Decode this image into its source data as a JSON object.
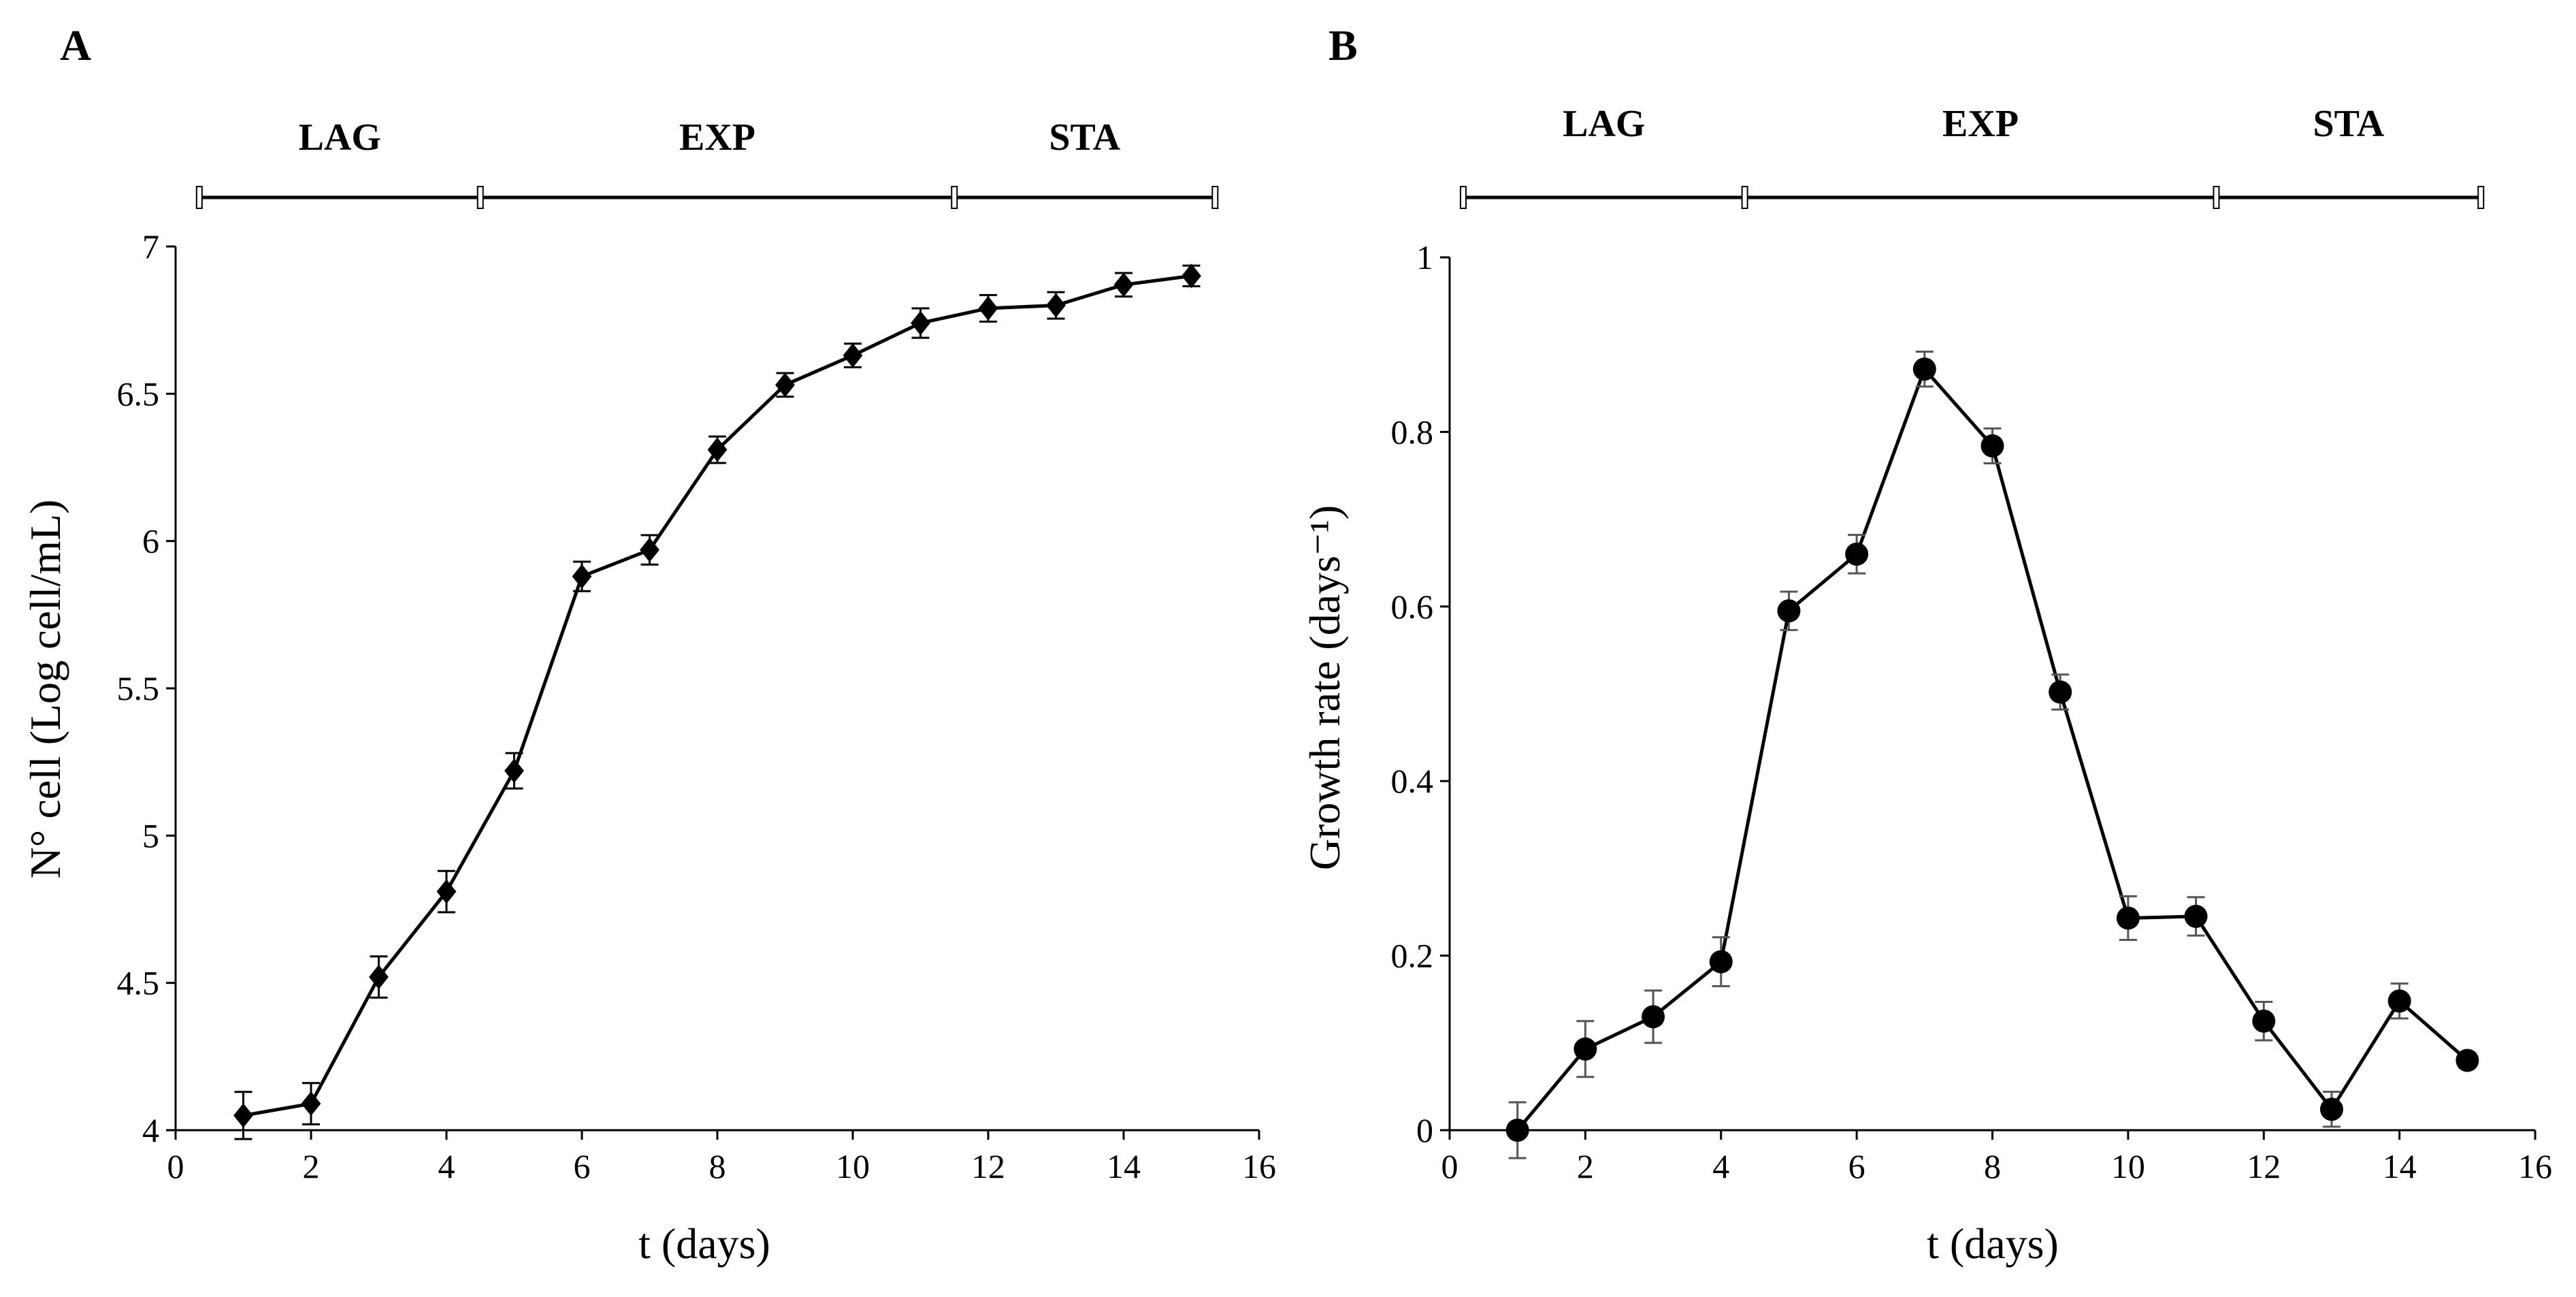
{
  "chart_data": [
    {
      "panel": "A",
      "type": "line",
      "marker": "diamond",
      "xlabel": "t (days)",
      "ylabel": "N° cell (Log cell/mL)",
      "xlim": [
        0,
        16
      ],
      "ylim": [
        4,
        7
      ],
      "xticks": [
        0,
        2,
        4,
        6,
        8,
        10,
        12,
        14,
        16
      ],
      "yticks": [
        4,
        4.5,
        5,
        5.5,
        6,
        6.5,
        7
      ],
      "grid": false,
      "phases": [
        {
          "label": "LAG",
          "start": 0.35,
          "end": 4.5
        },
        {
          "label": "EXP",
          "start": 4.5,
          "end": 11.5
        },
        {
          "label": "STA",
          "start": 11.5,
          "end": 15.35
        }
      ],
      "series": [
        {
          "x": [
            1,
            2,
            3,
            4,
            5,
            6,
            7,
            8,
            9,
            10,
            11,
            12,
            13,
            14,
            15
          ],
          "y": [
            4.05,
            4.09,
            4.52,
            4.81,
            5.22,
            5.88,
            5.97,
            6.31,
            6.53,
            6.63,
            6.74,
            6.79,
            6.8,
            6.87,
            6.9
          ],
          "err": [
            0.08,
            0.07,
            0.07,
            0.07,
            0.06,
            0.05,
            0.05,
            0.045,
            0.04,
            0.04,
            0.05,
            0.045,
            0.045,
            0.04,
            0.035
          ]
        }
      ]
    },
    {
      "panel": "B",
      "type": "line",
      "marker": "circle",
      "xlabel": "t (days)",
      "ylabel": "Growth rate (days⁻¹)",
      "xlim": [
        0,
        16
      ],
      "ylim": [
        0,
        1
      ],
      "xticks": [
        0,
        2,
        4,
        6,
        8,
        10,
        12,
        14,
        16
      ],
      "yticks": [
        0,
        0.2,
        0.4,
        0.6,
        0.8,
        1
      ],
      "grid": false,
      "phases": [
        {
          "label": "LAG",
          "start": 0.2,
          "end": 4.35
        },
        {
          "label": "EXP",
          "start": 4.35,
          "end": 11.3
        },
        {
          "label": "STA",
          "start": 11.3,
          "end": 15.2
        }
      ],
      "series": [
        {
          "x": [
            1,
            2,
            3,
            4,
            5,
            6,
            7,
            8,
            9,
            10,
            11,
            12,
            13,
            14,
            15
          ],
          "y": [
            0.0,
            0.093,
            0.13,
            0.193,
            0.595,
            0.66,
            0.872,
            0.784,
            0.502,
            0.243,
            0.245,
            0.125,
            0.024,
            0.148,
            0.08
          ],
          "err": [
            0.032,
            0.032,
            0.03,
            0.028,
            0.022,
            0.022,
            0.02,
            0.02,
            0.02,
            0.025,
            0.022,
            0.022,
            0.02,
            0.02,
            0.008
          ]
        }
      ]
    }
  ]
}
